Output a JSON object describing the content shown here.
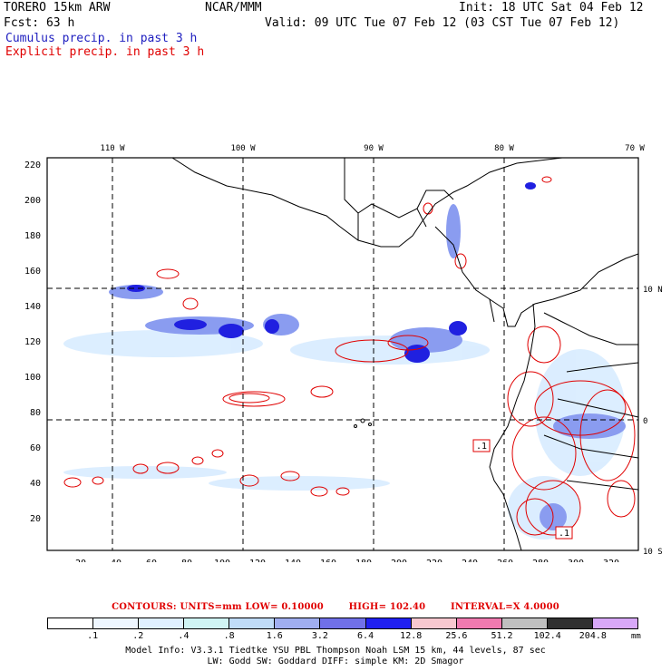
{
  "header": {
    "model": "TORERO  15km ARW",
    "org": "NCAR/MMM",
    "init": "Init: 18 UTC Sat 04 Feb 12",
    "fcst": "Fcst:   63 h",
    "valid": "Valid: 09 UTC Tue 07 Feb 12 (03 CST Tue 07 Feb 12)",
    "cumulus": "Cumulus precip. in past 3 h",
    "explicit": "Explicit precip. in past 3 h"
  },
  "axes": {
    "top_ticks": [
      "110 W",
      "100 W",
      "90 W",
      "80 W",
      "70 W"
    ],
    "right_ticks": [
      "10 N",
      "0",
      "10 S"
    ],
    "left_ticks": [
      "220",
      "200",
      "180",
      "160",
      "140",
      "120",
      "100",
      "80",
      "60",
      "40",
      "20"
    ],
    "bottom_ticks": [
      "20",
      "40",
      "60",
      "80",
      "100",
      "120",
      "140",
      "160",
      "180",
      "200",
      "220",
      "240",
      "260",
      "280",
      "300",
      "320"
    ]
  },
  "map_labels": {
    "box1": ".1",
    "box2": ".1"
  },
  "contours": {
    "units": "CONTOURS:  UNITS=mm  LOW= 0.10000",
    "high": "HIGH=  102.40",
    "interval": "INTERVAL=X  4.0000"
  },
  "colorbar": {
    "colors": [
      "#ffffff",
      "#eef6ff",
      "#e0f0ff",
      "#d0f4f4",
      "#c0dcf8",
      "#a0aef0",
      "#7070e8",
      "#2020f0",
      "#f8c8d0",
      "#f07ab0",
      "#c0c0c0",
      "#303030",
      "#d8a8f8"
    ],
    "labels": [
      ".1",
      ".2",
      ".4",
      ".8",
      "1.6",
      "3.2",
      "6.4",
      "12.8",
      "25.6",
      "51.2",
      "102.4",
      "204.8"
    ],
    "unit": "mm"
  },
  "info": {
    "line1": "Model Info: V3.3.1    Tiedtke YSU PBL  Thompson    Noah LSM  15 km,   44 levels,   87 sec",
    "line2": "LW: Godd SW: Goddard DIFF: simple KM: 2D Smagor"
  }
}
